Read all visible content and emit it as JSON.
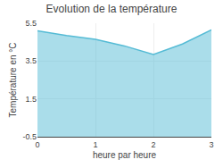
{
  "chart_data": {
    "type": "area",
    "title": "Evolution de la température",
    "xlabel": "heure par heure",
    "ylabel": "Température en °C",
    "x": [
      0,
      0.5,
      1,
      1.5,
      2,
      2.5,
      3
    ],
    "values": [
      5.1,
      4.85,
      4.65,
      4.3,
      3.85,
      4.4,
      5.15
    ],
    "color": "#55bbd5",
    "xlim": [
      0,
      3
    ],
    "ylim": [
      -0.5,
      5.5
    ],
    "xticks": [
      0,
      1,
      2,
      3
    ],
    "yticks": [
      5.5,
      3.5,
      1.5,
      -0.5
    ],
    "grid": true
  }
}
